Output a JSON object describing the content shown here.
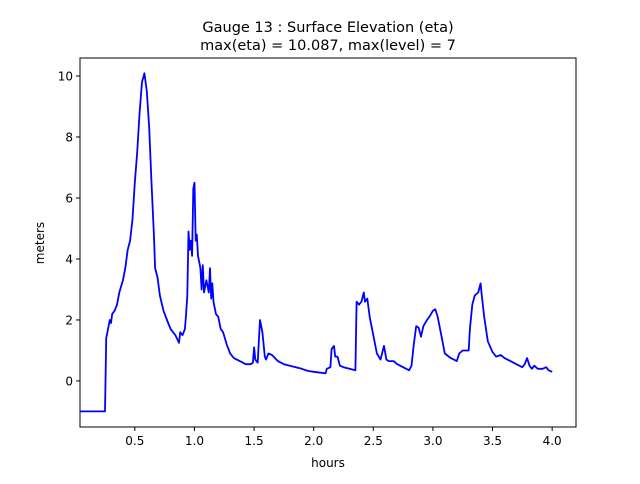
{
  "chart_data": {
    "type": "line",
    "title": "Gauge 13 : Surface Elevation (eta)",
    "subtitle": "max(eta) =  10.087,    max(level) = 7",
    "xlabel": "hours",
    "ylabel": "meters",
    "xlim": [
      0.04,
      4.2
    ],
    "ylim": [
      -1.51,
      10.59
    ],
    "xticks": [
      0.5,
      1.0,
      1.5,
      2.0,
      2.5,
      3.0,
      3.5,
      4.0
    ],
    "xtick_labels": [
      "0.5",
      "1.0",
      "1.5",
      "2.0",
      "2.5",
      "3.0",
      "3.5",
      "4.0"
    ],
    "yticks": [
      0,
      2,
      4,
      6,
      8,
      10
    ],
    "ytick_labels": [
      "0",
      "2",
      "4",
      "6",
      "8",
      "10"
    ],
    "grid": false,
    "series": [
      {
        "name": "eta",
        "color": "#0000ff",
        "x": [
          0.04,
          0.25,
          0.26,
          0.28,
          0.29,
          0.3,
          0.31,
          0.33,
          0.35,
          0.37,
          0.4,
          0.42,
          0.44,
          0.46,
          0.48,
          0.5,
          0.52,
          0.54,
          0.56,
          0.58,
          0.6,
          0.62,
          0.64,
          0.66,
          0.67,
          0.69,
          0.71,
          0.74,
          0.77,
          0.8,
          0.84,
          0.87,
          0.88,
          0.9,
          0.92,
          0.93,
          0.94,
          0.95,
          0.96,
          0.97,
          0.98,
          0.99,
          1.0,
          1.01,
          1.02,
          1.03,
          1.05,
          1.06,
          1.07,
          1.08,
          1.1,
          1.12,
          1.13,
          1.14,
          1.15,
          1.16,
          1.18,
          1.2,
          1.22,
          1.24,
          1.27,
          1.3,
          1.33,
          1.38,
          1.43,
          1.47,
          1.49,
          1.5,
          1.51,
          1.53,
          1.55,
          1.57,
          1.59,
          1.6,
          1.62,
          1.65,
          1.7,
          1.75,
          1.8,
          1.9,
          1.95,
          2.0,
          2.1,
          2.11,
          2.14,
          2.15,
          2.17,
          2.18,
          2.2,
          2.22,
          2.25,
          2.3,
          2.35,
          2.36,
          2.38,
          2.4,
          2.42,
          2.43,
          2.45,
          2.47,
          2.5,
          2.53,
          2.56,
          2.58,
          2.59,
          2.61,
          2.63,
          2.67,
          2.7,
          2.75,
          2.8,
          2.82,
          2.84,
          2.86,
          2.88,
          2.9,
          2.92,
          2.95,
          2.97,
          3.0,
          3.02,
          3.04,
          3.07,
          3.1,
          3.15,
          3.2,
          3.22,
          3.25,
          3.3,
          3.31,
          3.33,
          3.35,
          3.38,
          3.4,
          3.41,
          3.43,
          3.46,
          3.5,
          3.53,
          3.57,
          3.6,
          3.65,
          3.7,
          3.75,
          3.77,
          3.79,
          3.81,
          3.83,
          3.85,
          3.88,
          3.92,
          3.95,
          3.97,
          4.0
        ],
        "y": [
          -1.0,
          -1.0,
          1.4,
          1.8,
          2.0,
          1.9,
          2.2,
          2.3,
          2.5,
          2.9,
          3.3,
          3.7,
          4.3,
          4.6,
          5.3,
          6.5,
          7.5,
          8.8,
          9.8,
          10.087,
          9.5,
          8.3,
          6.5,
          4.8,
          3.7,
          3.4,
          2.8,
          2.3,
          2.0,
          1.7,
          1.5,
          1.25,
          1.6,
          1.5,
          1.7,
          2.2,
          2.8,
          4.9,
          4.3,
          4.6,
          4.1,
          6.3,
          6.5,
          4.6,
          4.8,
          4.1,
          3.7,
          3.0,
          3.8,
          2.9,
          3.3,
          2.9,
          3.7,
          2.7,
          3.2,
          2.6,
          2.2,
          2.1,
          1.7,
          1.6,
          1.2,
          0.9,
          0.75,
          0.65,
          0.55,
          0.55,
          0.6,
          1.1,
          0.7,
          0.6,
          2.0,
          1.6,
          0.8,
          0.7,
          0.9,
          0.85,
          0.65,
          0.55,
          0.5,
          0.4,
          0.33,
          0.3,
          0.25,
          0.4,
          0.45,
          1.05,
          1.15,
          0.8,
          0.8,
          0.5,
          0.45,
          0.4,
          0.35,
          2.6,
          2.5,
          2.6,
          2.9,
          2.6,
          2.7,
          2.1,
          1.5,
          0.9,
          0.7,
          1.0,
          1.15,
          0.7,
          0.65,
          0.65,
          0.55,
          0.45,
          0.35,
          0.5,
          1.2,
          1.8,
          1.75,
          1.45,
          1.8,
          2.0,
          2.1,
          2.3,
          2.35,
          2.1,
          1.5,
          0.9,
          0.75,
          0.65,
          0.9,
          1.0,
          1.0,
          1.7,
          2.5,
          2.8,
          2.9,
          3.2,
          2.8,
          2.1,
          1.3,
          0.95,
          0.8,
          0.85,
          0.75,
          0.65,
          0.55,
          0.45,
          0.55,
          0.75,
          0.5,
          0.4,
          0.5,
          0.4,
          0.4,
          0.45,
          0.35,
          0.3
        ]
      }
    ]
  }
}
